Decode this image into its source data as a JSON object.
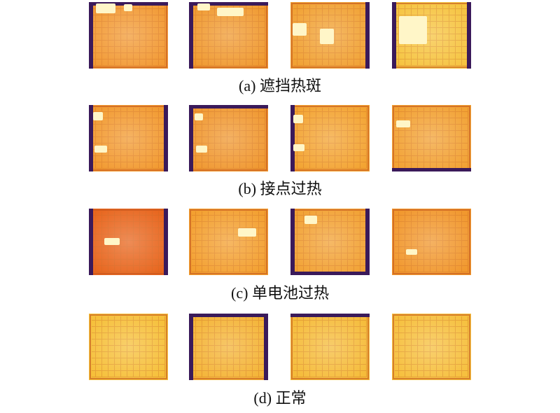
{
  "figure": {
    "groups": [
      {
        "caption": "(a) 遮挡热斑"
      },
      {
        "caption": "(b) 接点过热"
      },
      {
        "caption": "(c) 单电池过热"
      },
      {
        "caption": "(d) 正常"
      }
    ]
  }
}
